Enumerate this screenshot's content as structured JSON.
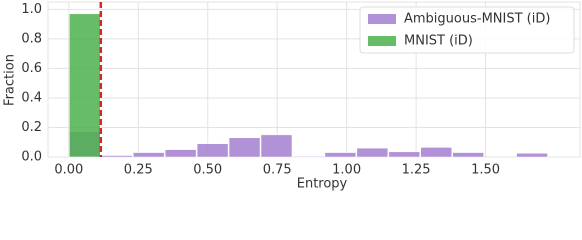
{
  "chart_data": {
    "type": "histogram",
    "xlabel": "Entropy",
    "ylabel": "Fraction",
    "bins": [
      0,
      0.115,
      0.23,
      0.345,
      0.46,
      0.575,
      0.69,
      0.805,
      0.92,
      1.035,
      1.15,
      1.265,
      1.38,
      1.495,
      1.61,
      1.725
    ],
    "series": [
      {
        "name": "Ambiguous-MNIST (iD)",
        "color": "#a47fd0",
        "values": [
          0.17,
          0.01,
          0.03,
          0.05,
          0.09,
          0.13,
          0.15,
          0.005,
          0.03,
          0.06,
          0.035,
          0.065,
          0.03,
          0,
          0.025
        ]
      },
      {
        "name": "MNIST (iD)",
        "color": "#4cb04c",
        "values": [
          0.97,
          0,
          0,
          0,
          0,
          0,
          0,
          0,
          0,
          0,
          0,
          0,
          0,
          0,
          0
        ]
      }
    ],
    "vline": {
      "x": 0.115,
      "color": "#d62728"
    },
    "xlim": [
      -0.075,
      1.84
    ],
    "ylim": [
      0,
      1.05
    ],
    "xticks": [
      {
        "value": 0,
        "label": "0.00"
      },
      {
        "value": 0.25,
        "label": "0.25"
      },
      {
        "value": 0.5,
        "label": "0.50"
      },
      {
        "value": 0.75,
        "label": "0.75"
      },
      {
        "value": 1,
        "label": "1.00"
      },
      {
        "value": 1.25,
        "label": "1.25"
      },
      {
        "value": 1.5,
        "label": "1.50"
      }
    ],
    "yticks": [
      {
        "value": 0,
        "label": "0.0"
      },
      0.2,
      0.4,
      0.6,
      0.8,
      {
        "value": 1,
        "label": "1.0"
      }
    ],
    "grid": true,
    "legend": "upper right"
  }
}
